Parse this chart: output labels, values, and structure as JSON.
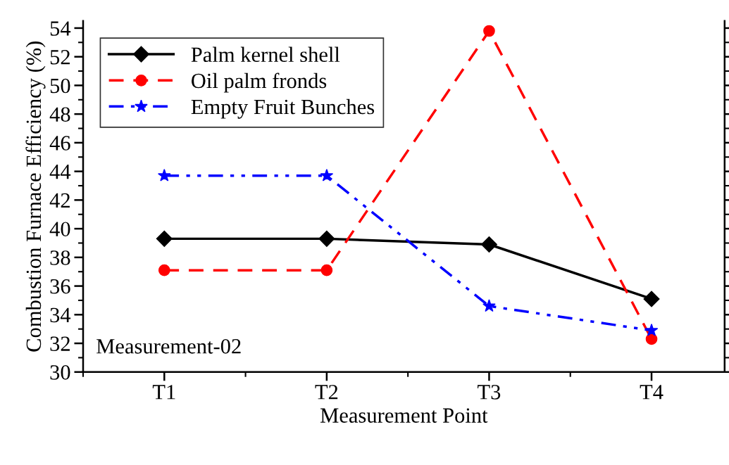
{
  "chart_data": {
    "type": "line",
    "xlabel": "Measurement Point",
    "ylabel": "Combustion Furnace Efficiency (%)",
    "categories": [
      "T1",
      "T2",
      "T3",
      "T4"
    ],
    "series": [
      {
        "name": "Palm kernel shell",
        "color": "#000000",
        "values": [
          39.3,
          39.3,
          38.9,
          35.1
        ],
        "marker": "diamond",
        "line_style": "solid"
      },
      {
        "name": "Oil palm fronds",
        "color": "#ff0000",
        "values": [
          37.1,
          37.1,
          53.8,
          32.3
        ],
        "marker": "circle",
        "line_style": "dashed"
      },
      {
        "name": "Empty Fruit Bunches",
        "color": "#0000ff",
        "values": [
          43.7,
          43.7,
          34.6,
          32.9
        ],
        "marker": "star",
        "line_style": "dashdot"
      }
    ],
    "ylim": [
      30,
      54.5
    ],
    "yticks": [
      30,
      32,
      34,
      36,
      38,
      40,
      42,
      44,
      46,
      48,
      50,
      52,
      54
    ],
    "legend": "top left",
    "grid": false,
    "annotations": [
      "Measurement-02"
    ]
  }
}
